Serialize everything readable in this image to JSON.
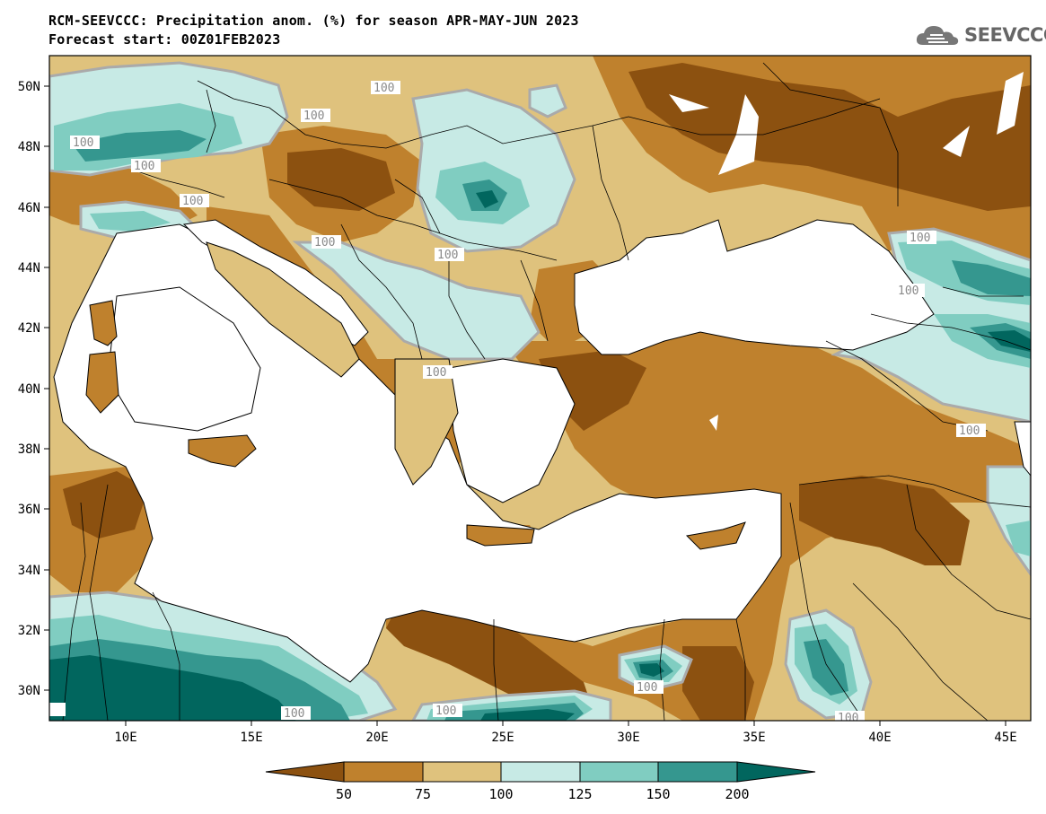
{
  "header": {
    "title": "RCM-SEEVCCC: Precipitation anom. (%) for season APR-MAY-JUN 2023",
    "subtitle": "Forecast start: 00Z01FEB2023",
    "logo_text": "SEEVCCC"
  },
  "map": {
    "lon_range": [
      7,
      46
    ],
    "lat_range": [
      29,
      51
    ],
    "lon_ticks": [
      "10E",
      "15E",
      "20E",
      "25E",
      "30E",
      "35E",
      "40E",
      "45E"
    ],
    "lat_ticks": [
      "50N",
      "48N",
      "46N",
      "44N",
      "42N",
      "40N",
      "38N",
      "36N",
      "34N",
      "32N",
      "30N"
    ],
    "contour_labels": [
      "100",
      "100",
      "100",
      "100",
      "100",
      "100",
      "100",
      "100",
      "100",
      "100",
      "100",
      "100",
      "100",
      "100",
      "100",
      "100"
    ]
  },
  "legend": {
    "levels": [
      "50",
      "75",
      "100",
      "125",
      "150",
      "200"
    ],
    "colors": {
      "below_50": "#8c5110",
      "50_75": "#bf812d",
      "75_100": "#dfc27d",
      "100_125": "#c7eae5",
      "125_150": "#80cdc1",
      "150_200": "#35978f",
      "above_200": "#01665e"
    }
  }
}
